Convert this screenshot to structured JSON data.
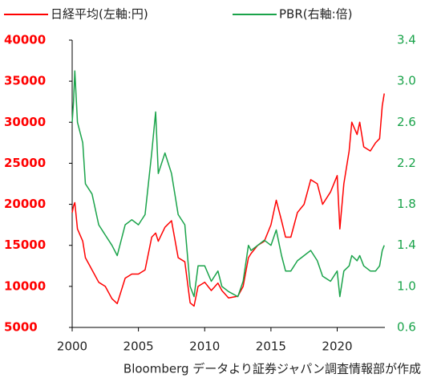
{
  "chart_data": {
    "type": "line",
    "source": "Bloomberg データより証券ジャパン調査情報部が作成",
    "x": [
      2000,
      2000.1,
      2000.2,
      2000.4,
      2000.8,
      2001,
      2001.5,
      2002,
      2002.5,
      2003,
      2003.4,
      2004,
      2004.5,
      2005,
      2005.5,
      2006,
      2006.3,
      2006.5,
      2007,
      2007.5,
      2008,
      2008.5,
      2008.9,
      2009.2,
      2009.5,
      2010,
      2010.5,
      2011,
      2011.3,
      2011.8,
      2012.5,
      2012.9,
      2013.3,
      2013.5,
      2014,
      2014.5,
      2015,
      2015.4,
      2015.8,
      2016.1,
      2016.5,
      2017,
      2017.5,
      2018,
      2018.5,
      2018.9,
      2019.5,
      2020,
      2020.2,
      2020.5,
      2020.9,
      2021.1,
      2021.5,
      2021.7,
      2022,
      2022.5,
      2022.9,
      2023.2,
      2023.4,
      2023.55
    ],
    "series": [
      {
        "name": "日経平均(左軸:円)",
        "color": "#ff0000",
        "axis": "y",
        "values": [
          19000,
          19800,
          20200,
          17000,
          15500,
          13500,
          12000,
          10500,
          10000,
          8500,
          7900,
          11000,
          11500,
          11500,
          12000,
          16000,
          16500,
          15500,
          17200,
          18000,
          13500,
          13000,
          8000,
          7600,
          10000,
          10500,
          9500,
          10400,
          9500,
          8600,
          8800,
          10000,
          13500,
          14000,
          15000,
          15500,
          17500,
          20500,
          18000,
          16000,
          16000,
          19000,
          20000,
          23000,
          22500,
          20000,
          21500,
          23500,
          17000,
          22500,
          26500,
          30000,
          28500,
          30000,
          27000,
          26500,
          27500,
          28000,
          32000,
          33500
        ]
      },
      {
        "name": "PBR(右軸:倍)",
        "color": "#1aa34a",
        "axis": "y2",
        "values": [
          2.6,
          2.8,
          3.1,
          2.6,
          2.4,
          2.0,
          1.9,
          1.6,
          1.5,
          1.4,
          1.3,
          1.6,
          1.65,
          1.6,
          1.7,
          2.3,
          2.7,
          2.1,
          2.3,
          2.1,
          1.7,
          1.6,
          1.0,
          0.9,
          1.2,
          1.2,
          1.05,
          1.15,
          1.0,
          0.95,
          0.9,
          1.05,
          1.4,
          1.35,
          1.4,
          1.45,
          1.4,
          1.55,
          1.3,
          1.15,
          1.15,
          1.25,
          1.3,
          1.35,
          1.25,
          1.1,
          1.05,
          1.15,
          0.9,
          1.15,
          1.2,
          1.3,
          1.25,
          1.3,
          1.2,
          1.15,
          1.15,
          1.2,
          1.35,
          1.4
        ]
      }
    ],
    "xlim": [
      2000,
      2023.6
    ],
    "xticks": [
      2000,
      2005,
      2010,
      2015,
      2020
    ],
    "ylim": [
      5000,
      40000
    ],
    "yticks": [
      5000,
      10000,
      15000,
      20000,
      25000,
      30000,
      35000,
      40000
    ],
    "y2lim": [
      0.6,
      3.4
    ],
    "y2ticks": [
      {
        "value": 0.6,
        "label": "0.6"
      },
      {
        "value": 1.0,
        "label": "1.0"
      },
      {
        "value": 1.4,
        "label": "1.4"
      },
      {
        "value": 1.8,
        "label": "1.8"
      },
      {
        "value": 2.2,
        "label": "2.2"
      },
      {
        "value": 2.6,
        "label": "2.6"
      },
      {
        "value": 3.0,
        "label": "3.0"
      },
      {
        "value": 3.4,
        "label": "3.4"
      }
    ],
    "grid": false
  }
}
